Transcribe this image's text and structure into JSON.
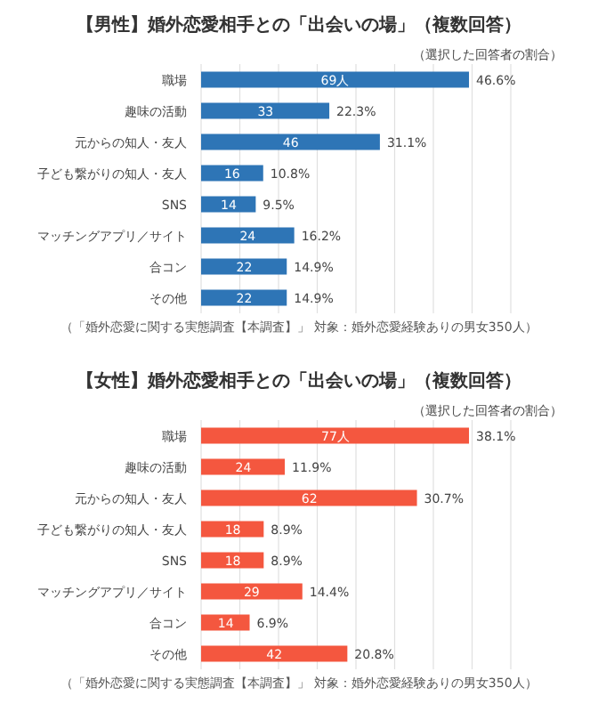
{
  "chart_data": [
    {
      "type": "bar",
      "orientation": "horizontal",
      "title": "【男性】婚外恋愛相手との「出会いの場」（複数回答）",
      "subtitle": "（選択した回答者の割合）",
      "categories": [
        "職場",
        "趣味の活動",
        "元からの知人・友人",
        "子ども繋がりの知人・友人",
        "SNS",
        "マッチングアプリ／サイト",
        "合コン",
        "その他"
      ],
      "values": [
        46.6,
        22.3,
        31.1,
        10.8,
        9.5,
        16.2,
        14.9,
        14.9
      ],
      "value_labels": [
        "46.6%",
        "22.3%",
        "31.1%",
        "10.8%",
        "9.5%",
        "16.2%",
        "14.9%",
        "14.9%"
      ],
      "color": "#2e75b6",
      "grid": "x",
      "tick_labels": "y",
      "annotations": [
        {
          "text": "69人",
          "x": 23.3,
          "y": "職場"
        },
        {
          "text": "33",
          "x": 11.2,
          "y": "趣味の活動"
        },
        {
          "text": "46",
          "x": 15.6,
          "y": "元からの知人・友人"
        },
        {
          "text": "16",
          "x": 5.4,
          "y": "子ども繋がりの知人・友人"
        },
        {
          "text": "14",
          "x": 4.8,
          "y": "SNS"
        },
        {
          "text": "24",
          "x": 8.1,
          "y": "マッチングアプリ／サイト"
        },
        {
          "text": "22",
          "x": 7.5,
          "y": "合コン"
        },
        {
          "text": "22",
          "x": 7.5,
          "y": "その他"
        },
        "（「婚外恋愛に関する実態調査【本調査】」 対象：婚外恋愛経験ありの男女350人）"
      ]
    },
    {
      "type": "bar",
      "orientation": "horizontal",
      "title": "【女性】婚外恋愛相手との「出会いの場」（複数回答）",
      "subtitle": "（選択した回答者の割合）",
      "categories": [
        "職場",
        "趣味の活動",
        "元からの知人・友人",
        "子ども繋がりの知人・友人",
        "SNS",
        "マッチングアプリ／サイト",
        "合コン",
        "その他"
      ],
      "values": [
        38.1,
        11.9,
        30.7,
        8.9,
        8.9,
        14.4,
        6.9,
        20.8
      ],
      "value_labels": [
        "38.1%",
        "11.9%",
        "30.7%",
        "8.9%",
        "8.9%",
        "14.4%",
        "6.9%",
        "20.8%"
      ],
      "color": "#f4573f",
      "grid": "x",
      "tick_labels": "y",
      "annotations": [
        {
          "text": "77人",
          "x": 19.1,
          "y": "職場"
        },
        {
          "text": "24",
          "x": 6.0,
          "y": "趣味の活動"
        },
        {
          "text": "62",
          "x": 15.4,
          "y": "元からの知人・友人"
        },
        {
          "text": "18",
          "x": 4.5,
          "y": "子ども繋がりの知人・友人"
        },
        {
          "text": "18",
          "x": 4.5,
          "y": "SNS"
        },
        {
          "text": "29",
          "x": 7.2,
          "y": "マッチングアプリ／サイト"
        },
        {
          "text": "14",
          "x": 3.5,
          "y": "合コン"
        },
        {
          "text": "42",
          "x": 10.4,
          "y": "その他"
        },
        "（「婚外恋愛に関する実態調査【本調査】」 対象：婚外恋愛経験ありの男女350人）"
      ]
    }
  ]
}
